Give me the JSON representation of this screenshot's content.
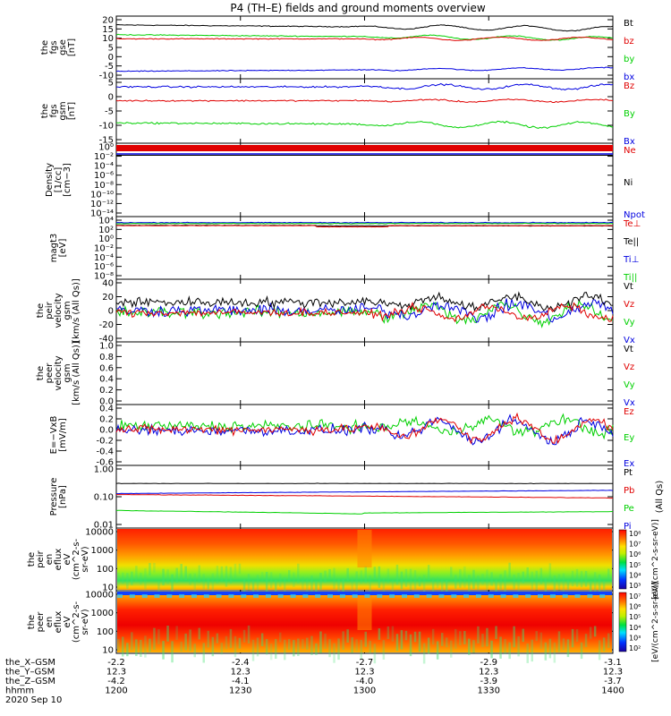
{
  "title": "P4 (TH–E) fields and ground moments overview",
  "colors": {
    "black": "#000000",
    "red": "#e00000",
    "green": "#00d000",
    "blue": "#0000e0"
  },
  "panels": [
    {
      "ylabel": [
        "the",
        "fgs",
        "gse",
        "[nT]"
      ],
      "yticks": [
        "20",
        "15",
        "10",
        "5",
        "0",
        "-5",
        "-10"
      ],
      "ylim": [
        -10,
        22
      ],
      "legend": [
        {
          "t": "Bt",
          "c": "black"
        },
        {
          "t": "bz",
          "c": "red"
        },
        {
          "t": "by",
          "c": "green"
        },
        {
          "t": "bx",
          "c": "blue"
        }
      ]
    },
    {
      "ylabel": [
        "the",
        "fgs",
        "gsm",
        "[nT]"
      ],
      "yticks": [
        "5",
        "0",
        "-5",
        "-10",
        "-15"
      ],
      "ylim": [
        -18,
        9
      ],
      "legend": [
        {
          "t": "Bz",
          "c": "red"
        },
        {
          "t": "By",
          "c": "green"
        },
        {
          "t": "Bx",
          "c": "blue"
        }
      ]
    },
    {
      "ylabel": [
        "Density",
        "[1/cc]",
        "[cm−3]"
      ],
      "yticks": [
        "10⁰",
        "10⁻²",
        "10⁻⁴",
        "10⁻⁶",
        "10⁻⁸",
        "10⁻¹⁰",
        "10⁻¹²",
        "10⁻¹⁴"
      ],
      "legend": [
        {
          "t": "Ne",
          "c": "red"
        },
        {
          "t": "Ni",
          "c": "black"
        },
        {
          "t": "Npot",
          "c": "blue"
        }
      ]
    },
    {
      "ylabel": [
        "magt3",
        "[eV]"
      ],
      "yticks": [
        "10⁴",
        "10²",
        "10⁰",
        "10⁻²",
        "10⁻⁴",
        "10⁻⁶",
        "10⁻⁸"
      ],
      "legend": [
        {
          "t": "Te⊥",
          "c": "red"
        },
        {
          "t": "Te||",
          "c": "black"
        },
        {
          "t": "Ti⊥",
          "c": "blue"
        },
        {
          "t": "Ti||",
          "c": "green"
        }
      ]
    },
    {
      "ylabel": [
        "the",
        "peir",
        "velocity",
        "gsm",
        "[km/s (All Qs)]"
      ],
      "yticks": [
        "40",
        "20",
        "0",
        "-20",
        "-40"
      ],
      "ylim": [
        -45,
        45
      ],
      "legend": [
        {
          "t": "Vt",
          "c": "black"
        },
        {
          "t": "Vz",
          "c": "red"
        },
        {
          "t": "Vy",
          "c": "green"
        },
        {
          "t": "Vx",
          "c": "blue"
        }
      ]
    },
    {
      "ylabel": [
        "the",
        "peer",
        "velocity",
        "gsm",
        "[km/s (All Qs)]"
      ],
      "yticks": [
        "1.0",
        "0.8",
        "0.6",
        "0.4",
        "0.2",
        "0.0"
      ],
      "ylim": [
        0,
        1.05
      ],
      "legend": [
        {
          "t": "Vt",
          "c": "black"
        },
        {
          "t": "Vz",
          "c": "red"
        },
        {
          "t": "Vy",
          "c": "green"
        },
        {
          "t": "Vx",
          "c": "blue"
        }
      ]
    },
    {
      "ylabel": [
        "E=−VxB",
        "[mV/m]"
      ],
      "yticks": [
        "0.4",
        "0.2",
        "0.0",
        "-0.2",
        "-0.4",
        "-0.6"
      ],
      "ylim": [
        -0.65,
        0.45
      ],
      "legend": [
        {
          "t": "Ez",
          "c": "red"
        },
        {
          "t": "Ey",
          "c": "green"
        },
        {
          "t": "Ex",
          "c": "blue"
        }
      ]
    },
    {
      "ylabel": [
        "Pressure",
        "[nPa]"
      ],
      "yticks": [
        "1.00",
        "0.10",
        "0.01"
      ],
      "legend": [
        {
          "t": "Pt",
          "c": "black"
        },
        {
          "t": "Pb",
          "c": "red"
        },
        {
          "t": "Pe",
          "c": "green"
        },
        {
          "t": "Pi",
          "c": "blue"
        }
      ],
      "right_label": "(All Qs)"
    },
    {
      "ylabel": [
        "the",
        "peir",
        "en",
        "eflux",
        "eV",
        "(cm^2-s-",
        "sr-eV)"
      ],
      "yticks": [
        "10000",
        "1000",
        "100",
        "10"
      ],
      "cbar": [
        "10⁸",
        "10⁷",
        "10⁶",
        "10⁵",
        "10⁴",
        "10³"
      ],
      "cbar_label": "[eV/(cm^2-s-sr-eV)]"
    },
    {
      "ylabel": [
        "the",
        "peer",
        "en",
        "eflux",
        "eV",
        "(cm^2-s-",
        "sr-eV)"
      ],
      "yticks": [
        "10000",
        "1000",
        "100",
        "10"
      ],
      "cbar": [
        "10⁷",
        "10⁶",
        "10⁵",
        "10⁴",
        "10³",
        "10²"
      ],
      "cbar_label": "[eV/(cm^2-s-sr-eV)]"
    }
  ],
  "xaxis": {
    "rows": [
      {
        "label": "the_X–GSM",
        "values": [
          "-2.2",
          "-2.4",
          "-2.7",
          "-2.9",
          "-3.1"
        ]
      },
      {
        "label": "the_Y–GSM",
        "values": [
          "12.3",
          "12.3",
          "12.3",
          "12.3",
          "12.3"
        ]
      },
      {
        "label": "the_Z–GSM",
        "values": [
          "-4.2",
          "-4.1",
          "-4.0",
          "-3.9",
          "-3.7"
        ]
      },
      {
        "label": "hhmm",
        "values": [
          "1200",
          "1230",
          "1300",
          "1330",
          "1400"
        ]
      }
    ],
    "date": "2020 Sep 10"
  },
  "chart_data": [
    {
      "type": "line",
      "title": "the fgs gse",
      "ylabel": "[nT]",
      "x": [
        "1200",
        "1230",
        "1300",
        "1330",
        "1400"
      ],
      "series": [
        {
          "name": "Bt",
          "values": [
            17.5,
            17.2,
            16.5,
            16.0,
            15.5
          ]
        },
        {
          "name": "bz",
          "values": [
            10.5,
            10.3,
            10.2,
            10.5,
            10.5
          ]
        },
        {
          "name": "by",
          "values": [
            12.5,
            12.2,
            11.5,
            11.0,
            10.5
          ]
        },
        {
          "name": "bx",
          "values": [
            -6.2,
            -6.0,
            -5.7,
            -5.2,
            -4.8
          ]
        }
      ]
    },
    {
      "type": "line",
      "title": "the fgs gsm",
      "ylabel": "[nT]",
      "x": [
        "1200",
        "1230",
        "1300",
        "1330",
        "1400"
      ],
      "series": [
        {
          "name": "Bz",
          "values": [
            0,
            0,
            -0.3,
            0,
            0
          ]
        },
        {
          "name": "By",
          "values": [
            -9.5,
            -9.2,
            -9.8,
            -10.2,
            -10.5
          ]
        },
        {
          "name": "Bx",
          "values": [
            5.5,
            5.5,
            6.5,
            6.0,
            5.5
          ]
        }
      ]
    },
    {
      "type": "line",
      "title": "the peir velocity gsm",
      "ylabel": "[km/s (All Qs)]",
      "ylim": [
        -40,
        40
      ],
      "x": [
        "1200",
        "1230",
        "1300",
        "1330",
        "1400"
      ],
      "series": [
        {
          "name": "Vt",
          "values": [
            10,
            10,
            20,
            15,
            15
          ]
        },
        {
          "name": "Vz",
          "values": [
            -5,
            -5,
            0,
            -5,
            -5
          ]
        },
        {
          "name": "Vy",
          "values": [
            -3,
            -3,
            -10,
            0,
            -5
          ]
        },
        {
          "name": "Vx",
          "values": [
            0,
            0,
            5,
            -5,
            0
          ]
        }
      ]
    },
    {
      "type": "line",
      "title": "E=−VxB",
      "ylabel": "[mV/m]",
      "ylim": [
        -0.6,
        0.4
      ],
      "x": [
        "1200",
        "1230",
        "1300",
        "1330",
        "1400"
      ],
      "series": [
        {
          "name": "Ez",
          "values": [
            0,
            -0.05,
            0.1,
            0,
            0
          ]
        },
        {
          "name": "Ey",
          "values": [
            0.05,
            0.05,
            0.1,
            0.1,
            0.1
          ]
        },
        {
          "name": "Ex",
          "values": [
            0,
            0,
            -0.1,
            0,
            0
          ]
        }
      ]
    },
    {
      "type": "line",
      "title": "Pressure",
      "ylabel": "[nPa]",
      "x": [
        "1200",
        "1230",
        "1300",
        "1330",
        "1400"
      ],
      "series": [
        {
          "name": "Pt",
          "values": [
            0.3,
            0.3,
            0.3,
            0.3,
            0.3
          ]
        },
        {
          "name": "Pb",
          "values": [
            0.12,
            0.12,
            0.11,
            0.1,
            0.095
          ]
        },
        {
          "name": "Pe",
          "values": [
            0.033,
            0.032,
            0.026,
            0.03,
            0.03
          ]
        },
        {
          "name": "Pi",
          "values": [
            0.14,
            0.15,
            0.17,
            0.17,
            0.17
          ]
        }
      ]
    }
  ]
}
